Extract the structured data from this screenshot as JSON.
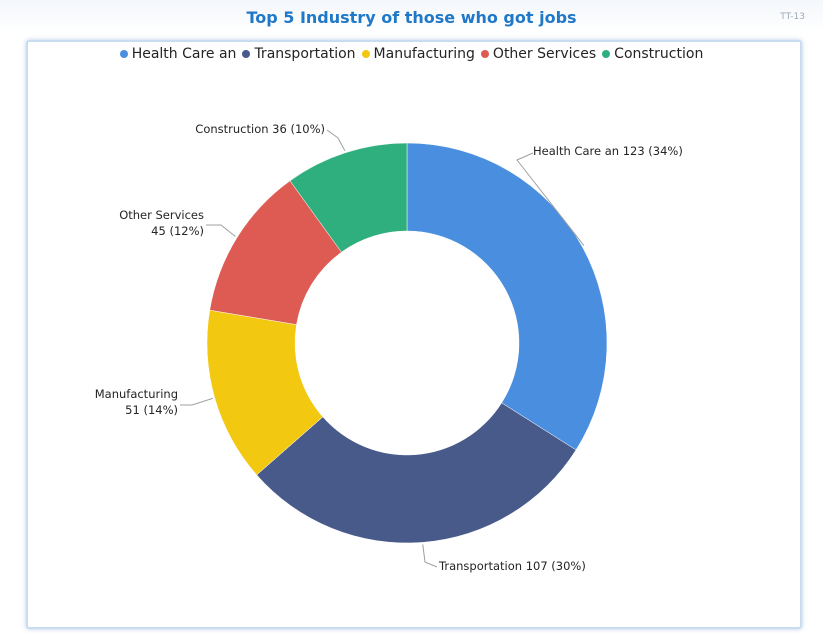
{
  "card": {
    "title": "Top 5 Industry of those who got jobs",
    "code": "TT-13"
  },
  "chart_data": {
    "type": "pie",
    "subtype": "donut",
    "title": "Top 5 Industry of those who got jobs",
    "legend_position": "top",
    "categories": [
      "Health Care an",
      "Transportation",
      "Manufacturing",
      "Other Services",
      "Construction"
    ],
    "values": [
      123,
      107,
      51,
      45,
      36
    ],
    "percent_labels": [
      "34%",
      "30%",
      "14%",
      "12%",
      "10%"
    ],
    "colors": [
      "#4a8edf",
      "#475a8a",
      "#f2c811",
      "#dd5b53",
      "#2eaf7d"
    ],
    "data_labels": [
      [
        "Health Care an 123 (34%)"
      ],
      [
        "Transportation 107 (30%)"
      ],
      [
        "Manufacturing",
        "51 (14%)"
      ],
      [
        "Other Services",
        "45 (12%)"
      ],
      [
        "Construction 36 (10%)"
      ]
    ]
  }
}
